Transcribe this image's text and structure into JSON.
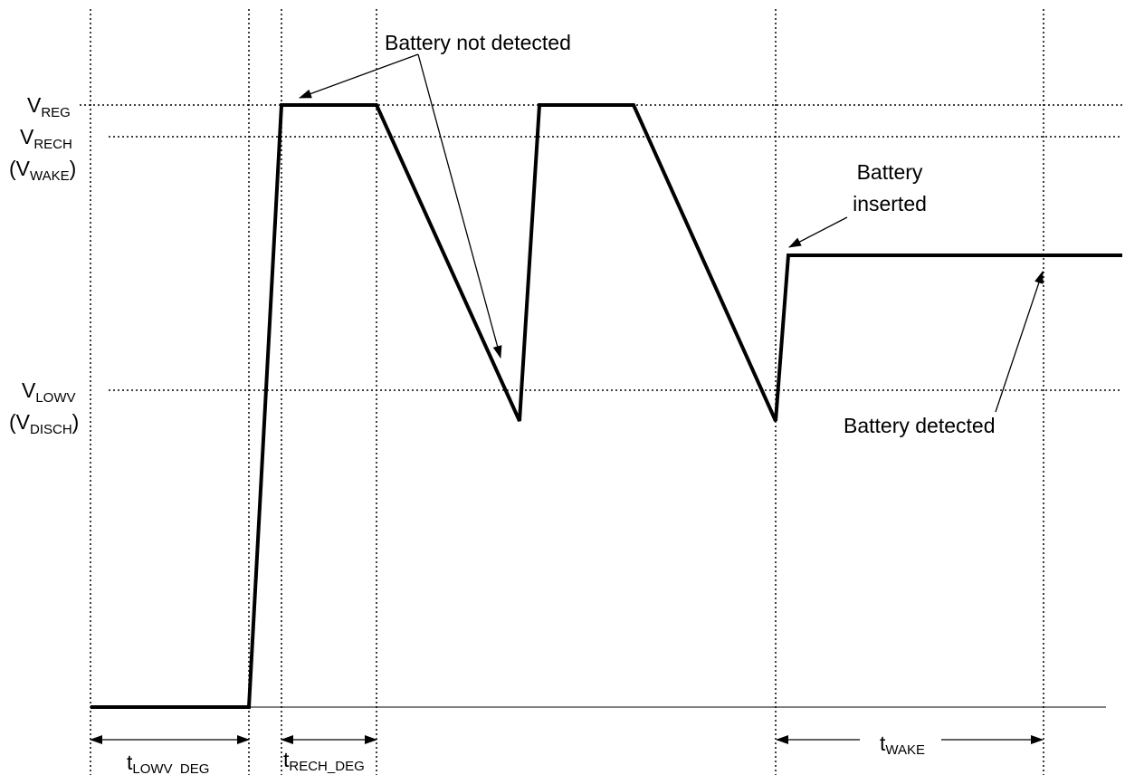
{
  "voltage_labels": [
    {
      "main": "V",
      "sub": "REG"
    },
    {
      "main": "V",
      "sub": "RECH"
    },
    {
      "main": "(V",
      "sub": "WAKE",
      "after": ")"
    },
    {
      "main": "V",
      "sub": "LOWV"
    },
    {
      "main": "(V",
      "sub": "DISCH",
      "after": ")"
    }
  ],
  "time_labels": [
    {
      "main": "t",
      "sub": "LOWV_DEG"
    },
    {
      "main": "t",
      "sub": "RECH_DEG"
    },
    {
      "main": "t",
      "sub": "WAKE"
    }
  ],
  "annotations": {
    "not_detected": "Battery not detected",
    "inserted": [
      "Battery",
      "inserted"
    ],
    "detected": "Battery detected"
  }
}
